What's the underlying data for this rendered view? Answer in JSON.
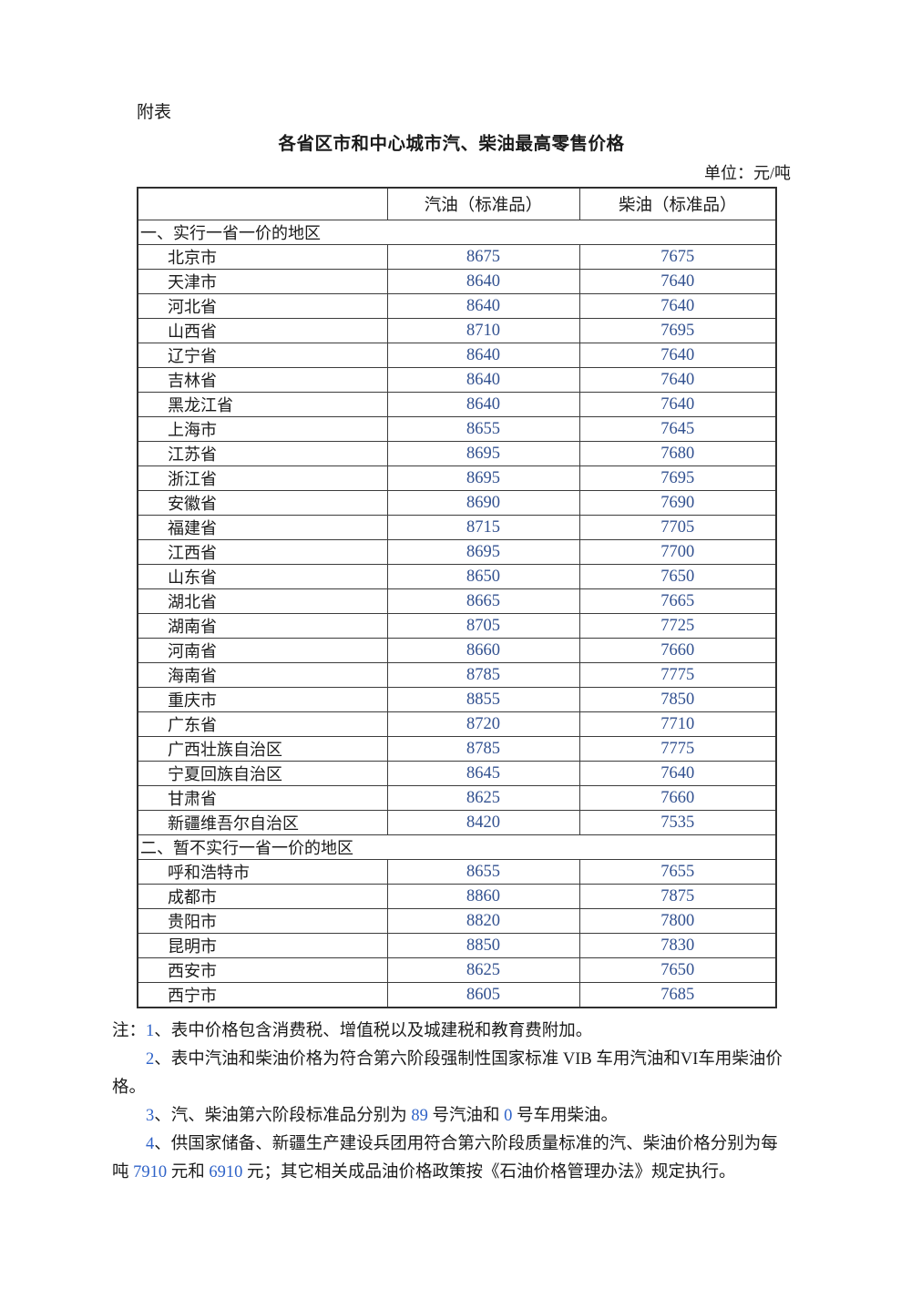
{
  "page": {
    "attachment_label": "附表",
    "title": "各省区市和中心城市汽、柴油最高零售价格",
    "unit_label": "单位：元/吨"
  },
  "table": {
    "columns": [
      "",
      "汽油（标准品）",
      "柴油（标准品）"
    ],
    "sections": [
      {
        "heading": "一、实行一省一价的地区",
        "rows": [
          {
            "region": "北京市",
            "gasoline": "8675",
            "diesel": "7675"
          },
          {
            "region": "天津市",
            "gasoline": "8640",
            "diesel": "7640"
          },
          {
            "region": "河北省",
            "gasoline": "8640",
            "diesel": "7640"
          },
          {
            "region": "山西省",
            "gasoline": "8710",
            "diesel": "7695"
          },
          {
            "region": "辽宁省",
            "gasoline": "8640",
            "diesel": "7640"
          },
          {
            "region": "吉林省",
            "gasoline": "8640",
            "diesel": "7640"
          },
          {
            "region": "黑龙江省",
            "gasoline": "8640",
            "diesel": "7640"
          },
          {
            "region": "上海市",
            "gasoline": "8655",
            "diesel": "7645"
          },
          {
            "region": "江苏省",
            "gasoline": "8695",
            "diesel": "7680"
          },
          {
            "region": "浙江省",
            "gasoline": "8695",
            "diesel": "7695"
          },
          {
            "region": "安徽省",
            "gasoline": "8690",
            "diesel": "7690"
          },
          {
            "region": "福建省",
            "gasoline": "8715",
            "diesel": "7705"
          },
          {
            "region": "江西省",
            "gasoline": "8695",
            "diesel": "7700"
          },
          {
            "region": "山东省",
            "gasoline": "8650",
            "diesel": "7650"
          },
          {
            "region": "湖北省",
            "gasoline": "8665",
            "diesel": "7665"
          },
          {
            "region": "湖南省",
            "gasoline": "8705",
            "diesel": "7725"
          },
          {
            "region": "河南省",
            "gasoline": "8660",
            "diesel": "7660"
          },
          {
            "region": "海南省",
            "gasoline": "8785",
            "diesel": "7775"
          },
          {
            "region": "重庆市",
            "gasoline": "8855",
            "diesel": "7850"
          },
          {
            "region": "广东省",
            "gasoline": "8720",
            "diesel": "7710"
          },
          {
            "region": "广西壮族自治区",
            "gasoline": "8785",
            "diesel": "7775"
          },
          {
            "region": "宁夏回族自治区",
            "gasoline": "8645",
            "diesel": "7640"
          },
          {
            "region": "甘肃省",
            "gasoline": "8625",
            "diesel": "7660"
          },
          {
            "region": "新疆维吾尔自治区",
            "gasoline": "8420",
            "diesel": "7535"
          }
        ]
      },
      {
        "heading": "二、暂不实行一省一价的地区",
        "rows": [
          {
            "region": "呼和浩特市",
            "gasoline": "8655",
            "diesel": "7655"
          },
          {
            "region": "成都市",
            "gasoline": "8860",
            "diesel": "7875"
          },
          {
            "region": "贵阳市",
            "gasoline": "8820",
            "diesel": "7800"
          },
          {
            "region": "昆明市",
            "gasoline": "8850",
            "diesel": "7830"
          },
          {
            "region": "西安市",
            "gasoline": "8625",
            "diesel": "7650"
          },
          {
            "region": "西宁市",
            "gasoline": "8605",
            "diesel": "7685"
          }
        ]
      }
    ]
  },
  "notes": {
    "prefix": "注：",
    "items": [
      "1、表中价格包含消费税、增值税以及城建税和教育费附加。",
      "2、表中汽油和柴油价格为符合第六阶段强制性国家标准 VIB 车用汽油和VI车用柴油价格。",
      "3、汽、柴油第六阶段标准品分别为 89 号汽油和 0 号车用柴油。",
      "4、供国家储备、新疆生产建设兵团用符合第六阶段质量标准的汽、柴油价格分别为每吨 7910 元和 6910 元；其它相关成品油价格政策按《石油价格管理办法》规定执行。"
    ]
  },
  "colors": {
    "table_number_blue": "#31508f",
    "note_digit_blue": "#2e62c8",
    "text_black": "#1b1b1b",
    "border_gray": "#3c3c3c"
  }
}
